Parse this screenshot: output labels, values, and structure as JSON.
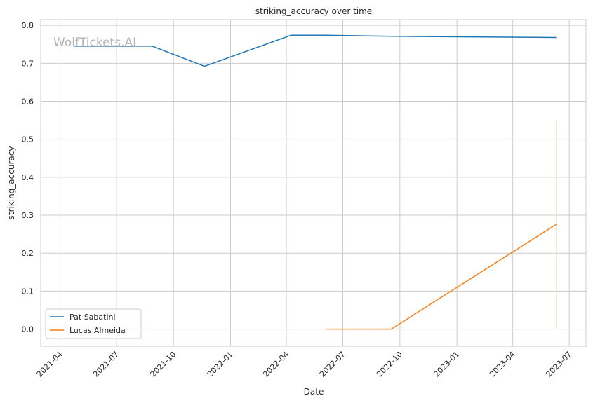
{
  "chart_data": {
    "type": "line",
    "title": "striking_accuracy over time",
    "xlabel": "Date",
    "ylabel": "striking_accuracy",
    "watermark": "WolfTickets.AI",
    "xlim": [
      "2021-03-01",
      "2023-07-28"
    ],
    "ylim": [
      -0.045,
      0.815
    ],
    "x_ticks": [
      "2021-04-01",
      "2021-07-01",
      "2021-10-01",
      "2022-01-01",
      "2022-04-01",
      "2022-07-01",
      "2022-10-01",
      "2023-01-01",
      "2023-04-01",
      "2023-07-01"
    ],
    "x_tick_labels": [
      "2021-04",
      "2021-07",
      "2021-10",
      "2022-01",
      "2022-04",
      "2022-07",
      "2022-10",
      "2023-01",
      "2023-04",
      "2023-07"
    ],
    "y_ticks": [
      0.0,
      0.1,
      0.2,
      0.3,
      0.4,
      0.5,
      0.6,
      0.7,
      0.8
    ],
    "y_tick_labels": [
      "0.0",
      "0.1",
      "0.2",
      "0.3",
      "0.4",
      "0.5",
      "0.6",
      "0.7",
      "0.8"
    ],
    "grid": true,
    "legend_position": "lower-left",
    "series": [
      {
        "name": "Pat Sabatini",
        "color": "#1f77b4",
        "points": [
          {
            "x": "2021-04-24",
            "y": 0.745
          },
          {
            "x": "2021-08-28",
            "y": 0.745
          },
          {
            "x": "2021-11-20",
            "y": 0.692
          },
          {
            "x": "2022-04-09",
            "y": 0.774
          },
          {
            "x": "2022-06-04",
            "y": 0.774
          },
          {
            "x": "2022-09-17",
            "y": 0.771
          },
          {
            "x": "2023-06-10",
            "y": 0.768
          }
        ]
      },
      {
        "name": "Lucas Almeida",
        "color": "#ff7f0e",
        "points": [
          {
            "x": "2022-06-04",
            "y": 0.0
          },
          {
            "x": "2022-09-17",
            "y": 0.0
          },
          {
            "x": "2023-06-10",
            "y": 0.276
          }
        ]
      }
    ],
    "annotation_line": {
      "x": "2023-06-10",
      "y_from": 0.0,
      "y_to": 0.55,
      "color": "#fde3cc"
    }
  }
}
